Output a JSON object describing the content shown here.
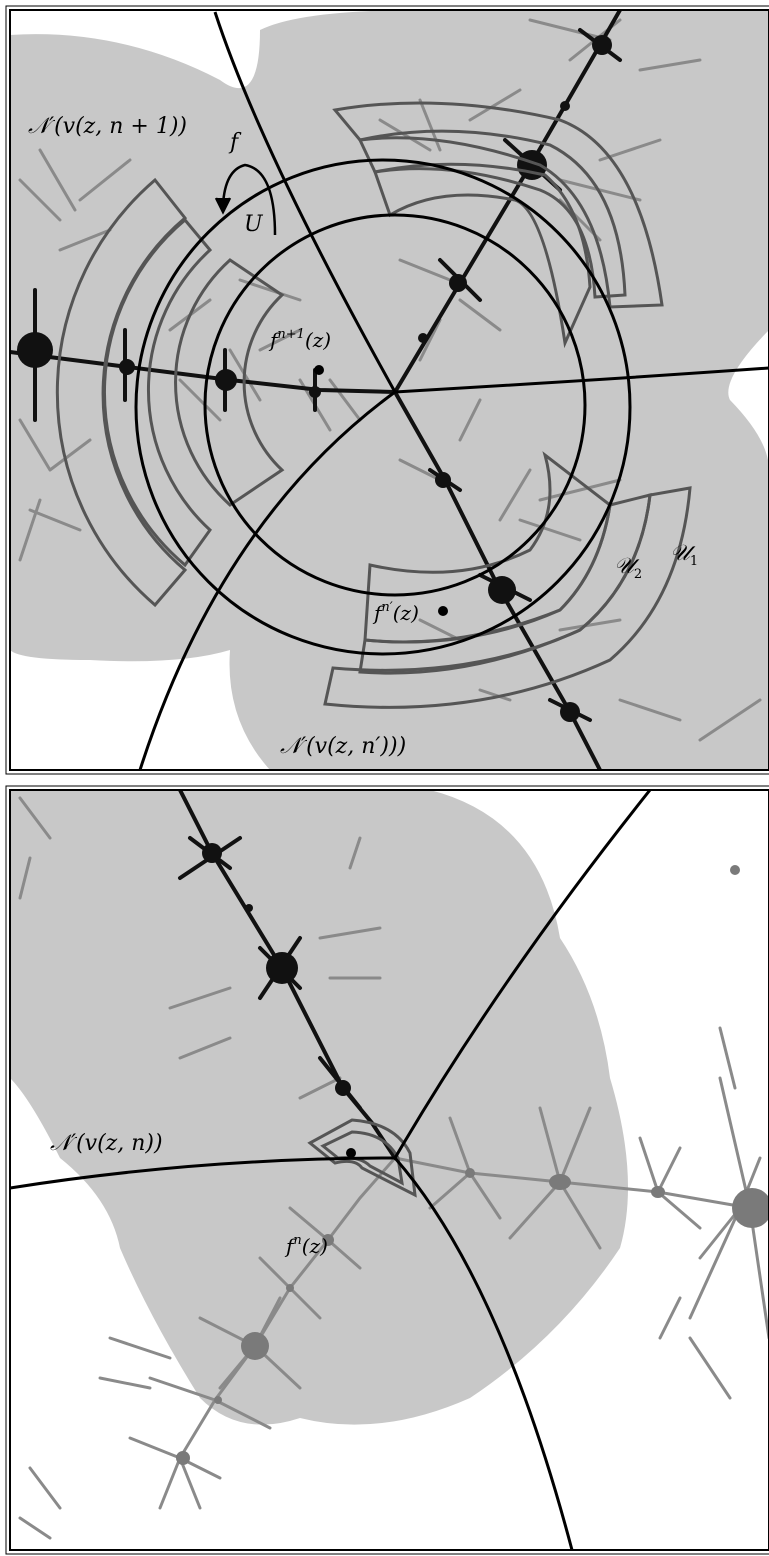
{
  "top_panel": {
    "labels": {
      "neighborhood_upper": "𝒩′(v(z, n + 1))",
      "neighborhood_lower": "𝒩′(v(z, n′)))",
      "map_f": "f",
      "set_U": "U",
      "point_fn1_base": "f",
      "point_fn1_exp": "n+1",
      "point_fn1_arg": "(z)",
      "point_fnprime_base": "f",
      "point_fnprime_exp": "n′",
      "point_fnprime_arg": "(z)",
      "U2_base": "𝒰",
      "U2_sub": "2",
      "U1_base": "𝒰",
      "U1_sub": "1"
    }
  },
  "bottom_panel": {
    "labels": {
      "neighborhood": "𝒩′(v(z, n))",
      "point_fn_base": "f",
      "point_fn_exp": "n",
      "point_fn_arg": "(z)"
    }
  },
  "colors": {
    "shaded_region": "#c8c8c8",
    "dark_julia": "#111111",
    "light_julia": "#8a8a8a",
    "annulus_outline": "#555555",
    "curves": "#000000"
  }
}
